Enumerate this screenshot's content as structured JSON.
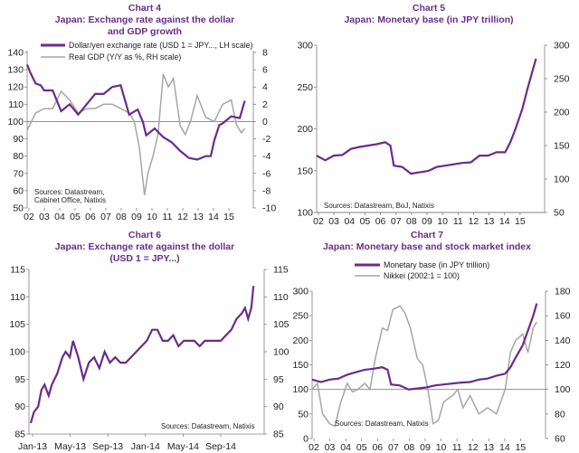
{
  "chart_data": [
    {
      "id": "chart4",
      "type": "line",
      "title_line1": "Chart 4",
      "title_line2": "Japan: Exchange rate against the dollar",
      "title_line3": "and GDP growth",
      "xlabels": [
        "02",
        "03",
        "04",
        "05",
        "06",
        "07",
        "08",
        "09",
        "10",
        "11",
        "12",
        "13",
        "14",
        "15"
      ],
      "y_left": {
        "min": 50,
        "max": 140,
        "ticks": [
          "50",
          "60",
          "70",
          "80",
          "90",
          "100",
          "110",
          "120",
          "130",
          "140"
        ]
      },
      "y_right": {
        "min": -10,
        "max": 8,
        "ticks": [
          "-10",
          "-8",
          "-6",
          "-4",
          "-2",
          "0",
          "2",
          "4",
          "6",
          "8"
        ]
      },
      "legend": [
        "Dollar/yen exchange rate (USD 1 = JPY..., LH scale)",
        "Real GDP (Y/Y as %, RH scale)"
      ],
      "source_line1": "Sources: Datastream,",
      "source_line2": "Cabinet Office, Natixis",
      "series": [
        {
          "name": "Dollar/yen exchange rate (USD 1 = JPY..., LH scale)",
          "color": "#6a2c8a",
          "axis": "left",
          "x": [
            2002.0,
            2002.2,
            2002.5,
            2002.8,
            2003.0,
            2003.5,
            2004.0,
            2004.5,
            2005.0,
            2005.5,
            2006.0,
            2006.5,
            2007.0,
            2007.5,
            2008.0,
            2008.5,
            2008.8,
            2009.0,
            2009.5,
            2010.0,
            2010.5,
            2011.0,
            2011.5,
            2012.0,
            2012.5,
            2012.8,
            2013.0,
            2013.3,
            2013.5,
            2014.0,
            2014.5,
            2014.8
          ],
          "values": [
            133,
            128,
            122,
            121,
            118,
            118,
            106,
            110,
            104,
            110,
            116,
            116,
            120,
            121,
            104,
            107,
            100,
            92,
            96,
            91,
            88,
            83,
            79,
            78,
            80,
            80,
            89,
            98,
            99,
            103,
            102,
            112
          ]
        },
        {
          "name": "Real GDP (Y/Y as %, RH scale)",
          "color": "#a6a6a6",
          "axis": "right",
          "x": [
            2002.0,
            2002.5,
            2003.0,
            2003.5,
            2004.0,
            2004.5,
            2005.0,
            2005.5,
            2006.0,
            2006.5,
            2007.0,
            2007.5,
            2008.0,
            2008.3,
            2008.6,
            2008.9,
            2009.1,
            2009.4,
            2009.7,
            2010.0,
            2010.3,
            2010.6,
            2011.0,
            2011.3,
            2011.6,
            2012.0,
            2012.5,
            2013.0,
            2013.5,
            2014.0,
            2014.3,
            2014.6,
            2014.8
          ],
          "values": [
            -1.0,
            1.0,
            1.5,
            1.5,
            3.5,
            2.5,
            1.0,
            1.5,
            1.5,
            2.0,
            2.0,
            1.5,
            1.0,
            0.0,
            -3.0,
            -8.5,
            -6.0,
            -4.0,
            -1.5,
            5.5,
            4.0,
            5.0,
            -0.5,
            -1.5,
            0.0,
            3.0,
            0.5,
            0.0,
            2.0,
            2.5,
            -0.3,
            -1.3,
            -0.8
          ]
        }
      ]
    },
    {
      "id": "chart5",
      "type": "line",
      "title_line1": "Chart 5",
      "title_line2": "Japan: Monetary base (in JPY trillion)",
      "xlabels": [
        "02",
        "03",
        "04",
        "05",
        "06",
        "07",
        "08",
        "09",
        "10",
        "11",
        "12",
        "13",
        "14",
        "15"
      ],
      "y_left": {
        "min": 100,
        "max": 300,
        "ticks": [
          "100",
          "150",
          "200",
          "250",
          "300"
        ]
      },
      "y_right": {
        "min": 50,
        "max": 300,
        "ticks": [
          "50",
          "100",
          "150",
          "200",
          "250",
          "300"
        ]
      },
      "source_line1": "Sources: Datastream, BoJ, Natixis",
      "series": [
        {
          "name": "Monetary base (in JPY trillion)",
          "color": "#6a2c8a",
          "axis": "right",
          "x": [
            2002.0,
            2002.5,
            2003.0,
            2003.5,
            2004.0,
            2004.5,
            2005.0,
            2005.5,
            2006.0,
            2006.3,
            2006.5,
            2007.0,
            2007.5,
            2008.0,
            2008.5,
            2009.0,
            2009.5,
            2010.0,
            2010.5,
            2011.0,
            2011.5,
            2012.0,
            2012.5,
            2013.0,
            2013.3,
            2013.6,
            2014.0,
            2014.3,
            2014.6,
            2014.8
          ],
          "values": [
            135,
            128,
            135,
            136,
            145,
            148,
            150,
            152,
            155,
            150,
            120,
            118,
            108,
            110,
            112,
            118,
            120,
            122,
            124,
            125,
            135,
            135,
            140,
            140,
            155,
            175,
            205,
            235,
            262,
            280
          ]
        }
      ]
    },
    {
      "id": "chart6",
      "type": "line",
      "title_line1": "Chart 6",
      "title_line2": "Japan: Exchange rate against the dollar",
      "title_line3": "(USD 1 = JPY...)",
      "xlabels": [
        "Jan-13",
        "May-13",
        "Sep-13",
        "Jan-14",
        "May-14",
        "Sep-14"
      ],
      "y_left": {
        "min": 85,
        "max": 115,
        "ticks": [
          "85",
          "90",
          "95",
          "100",
          "105",
          "110",
          "115"
        ]
      },
      "y_right": {
        "min": 85,
        "max": 115,
        "ticks": [
          "85",
          "90",
          "95",
          "100",
          "105",
          "110",
          "115"
        ]
      },
      "source_line1": "Sources: Datastream, Natixis",
      "series": [
        {
          "name": "USD/JPY",
          "color": "#6a2c8a",
          "axis": "left",
          "x": [
            0,
            0.3,
            0.7,
            1.0,
            1.3,
            1.7,
            2.0,
            2.5,
            3.0,
            3.3,
            3.7,
            4.0,
            4.5,
            5.0,
            5.5,
            6.0,
            6.5,
            7.0,
            7.5,
            8.0,
            8.5,
            9.0,
            9.5,
            10.0,
            10.5,
            11.0,
            11.5,
            12.0,
            12.5,
            13.0,
            13.5,
            14.0,
            14.5,
            15.0,
            15.5,
            16.0,
            16.5,
            17.0,
            17.5,
            18.0,
            18.5,
            19.0,
            19.5,
            20.0,
            20.3,
            20.6,
            20.9,
            21.1
          ],
          "values": [
            87,
            89,
            90,
            93,
            94,
            92,
            94,
            96,
            99,
            100,
            99,
            102,
            99,
            95,
            98,
            99,
            97,
            100,
            98,
            99,
            98,
            98,
            99,
            100,
            101,
            102,
            104,
            104,
            102,
            102,
            103,
            101,
            102,
            102,
            102,
            101,
            102,
            102,
            102,
            102,
            103,
            104,
            106,
            107,
            108,
            106,
            108,
            112
          ]
        }
      ]
    },
    {
      "id": "chart7",
      "type": "line",
      "title_line1": "Chart 7",
      "title_line2": "Japan: Monetary base and stock market index",
      "xlabels": [
        "02",
        "03",
        "04",
        "05",
        "06",
        "07",
        "08",
        "09",
        "10",
        "11",
        "12",
        "13",
        "14",
        "15"
      ],
      "y_left": {
        "min": 0,
        "max": 300,
        "ticks": [
          "0",
          "50",
          "100",
          "150",
          "200",
          "250",
          "300"
        ]
      },
      "y_right": {
        "min": 60,
        "max": 180,
        "ticks": [
          "60",
          "80",
          "100",
          "120",
          "140",
          "160",
          "180"
        ]
      },
      "legend": [
        "Monetary base (in JPY trillion)",
        "Nikkei (2002:1 = 100)"
      ],
      "source_line1": "Sources: Datastream, Natixis",
      "series": [
        {
          "name": "Monetary base (in JPY trillion)",
          "color": "#6a2c8a",
          "axis": "left",
          "x": [
            2002.0,
            2002.5,
            2003.0,
            2003.5,
            2004.0,
            2004.5,
            2005.0,
            2005.5,
            2006.0,
            2006.3,
            2006.5,
            2007.0,
            2007.5,
            2008.0,
            2008.5,
            2009.0,
            2009.5,
            2010.0,
            2010.5,
            2011.0,
            2011.5,
            2012.0,
            2012.5,
            2013.0,
            2013.3,
            2013.6,
            2014.0,
            2014.3,
            2014.6,
            2014.8
          ],
          "values": [
            120,
            115,
            120,
            122,
            130,
            135,
            140,
            142,
            145,
            140,
            110,
            108,
            100,
            102,
            104,
            108,
            110,
            112,
            114,
            115,
            120,
            122,
            128,
            132,
            145,
            165,
            190,
            220,
            250,
            275
          ]
        },
        {
          "name": "Nikkei (2002:1 = 100)",
          "color": "#a6a6a6",
          "axis": "right",
          "x": [
            2002.0,
            2002.3,
            2002.6,
            2003.0,
            2003.3,
            2003.6,
            2004.0,
            2004.3,
            2004.6,
            2005.0,
            2005.3,
            2005.6,
            2006.0,
            2006.3,
            2006.6,
            2007.0,
            2007.3,
            2007.6,
            2008.0,
            2008.3,
            2008.6,
            2008.9,
            2009.2,
            2009.5,
            2010.0,
            2010.3,
            2010.6,
            2011.0,
            2011.5,
            2012.0,
            2012.5,
            2013.0,
            2013.3,
            2013.6,
            2014.0,
            2014.3,
            2014.6,
            2014.8
          ],
          "values": [
            100,
            105,
            80,
            72,
            70,
            88,
            105,
            98,
            100,
            105,
            100,
            125,
            150,
            148,
            165,
            168,
            162,
            150,
            125,
            120,
            100,
            72,
            75,
            90,
            95,
            100,
            85,
            95,
            80,
            85,
            80,
            100,
            130,
            140,
            145,
            130,
            150,
            155
          ]
        }
      ]
    }
  ]
}
